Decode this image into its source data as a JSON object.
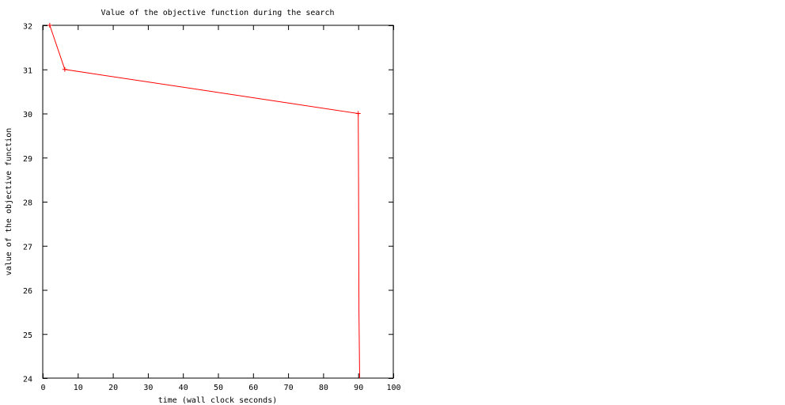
{
  "chart_data": {
    "type": "line",
    "title": "Value of the objective function during the search",
    "xlabel": "time (wall clock seconds)",
    "ylabel": "value of the objective function",
    "xlim": [
      0,
      100
    ],
    "ylim": [
      24,
      32
    ],
    "xticks": [
      0,
      10,
      20,
      30,
      40,
      50,
      60,
      70,
      80,
      90,
      100
    ],
    "yticks": [
      24,
      25,
      26,
      27,
      28,
      29,
      30,
      31,
      32
    ],
    "grid": false,
    "legend": "none",
    "series": [
      {
        "color": "#ff0000",
        "x": [
          2.0,
          6.3,
          90.0,
          90.1,
          90.2,
          90.4
        ],
        "y": [
          32,
          31,
          30,
          28.5,
          25.5,
          24
        ],
        "markers": [
          true,
          true,
          true,
          false,
          false,
          false
        ]
      }
    ]
  }
}
